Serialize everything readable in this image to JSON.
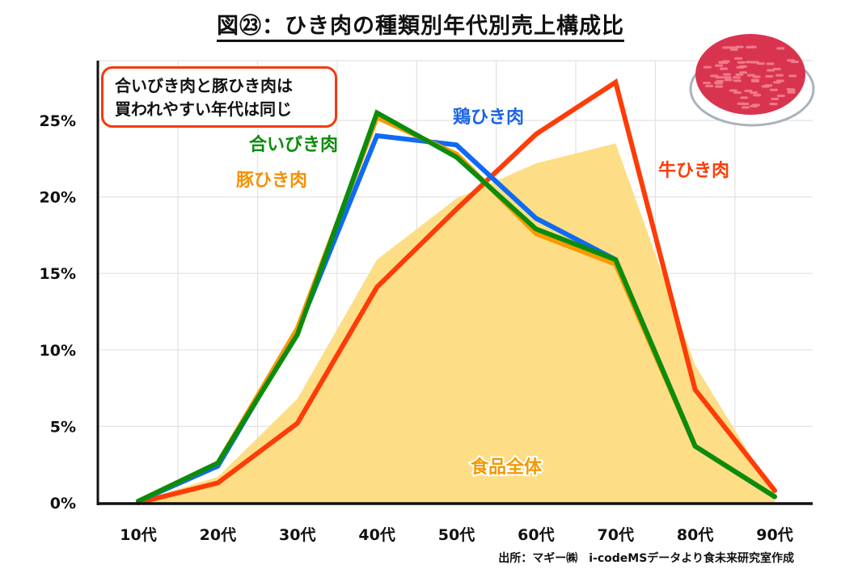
{
  "title": "図㉓：ひき肉の種類別年代別売上構成比",
  "note": [
    "合いびき肉と豚ひき肉は",
    "買われやすい年代は同じ"
  ],
  "source": "出所：マギー㈱　i-codeMSデータより食未来研究室作成",
  "image": {
    "icon": "ground-meat-plate-icon"
  },
  "chart_data": {
    "type": "line",
    "title": "図㉓：ひき肉の種類別年代別売上構成比",
    "xlabel": "",
    "ylabel": "",
    "categories": [
      "10代",
      "20代",
      "30代",
      "40代",
      "50代",
      "60代",
      "70代",
      "80代",
      "90代"
    ],
    "yticks": [
      "0%",
      "5%",
      "10%",
      "15%",
      "20%",
      "25%"
    ],
    "ytick_values": [
      0,
      5,
      10,
      15,
      20,
      25
    ],
    "ylim": [
      0,
      29
    ],
    "grid": true,
    "series": [
      {
        "name": "食品全体",
        "kind": "area",
        "color": "#fddc80",
        "label_color": "#f39800",
        "values": [
          0.1,
          1.7,
          6.8,
          15.9,
          19.9,
          22.2,
          23.5,
          9.0,
          0.5
        ]
      },
      {
        "name": "牛ひき肉",
        "kind": "line",
        "color": "#fe3c07",
        "values": [
          0.0,
          1.3,
          5.2,
          14.1,
          19.2,
          24.1,
          27.5,
          7.4,
          0.8
        ]
      },
      {
        "name": "鶏ひき肉",
        "kind": "line",
        "color": "#0f6af5",
        "values": [
          0.1,
          2.4,
          11.2,
          24.0,
          23.4,
          18.6,
          15.9,
          3.7,
          0.4
        ]
      },
      {
        "name": "豚ひき肉",
        "kind": "line",
        "color": "#f99900",
        "values": [
          0.1,
          2.6,
          11.4,
          25.2,
          22.8,
          17.6,
          15.6,
          3.7,
          0.4
        ]
      },
      {
        "name": "合いびき肉",
        "kind": "line",
        "color": "#0b8c0b",
        "values": [
          0.1,
          2.6,
          11.0,
          25.5,
          22.6,
          17.9,
          15.9,
          3.7,
          0.4
        ]
      }
    ]
  }
}
